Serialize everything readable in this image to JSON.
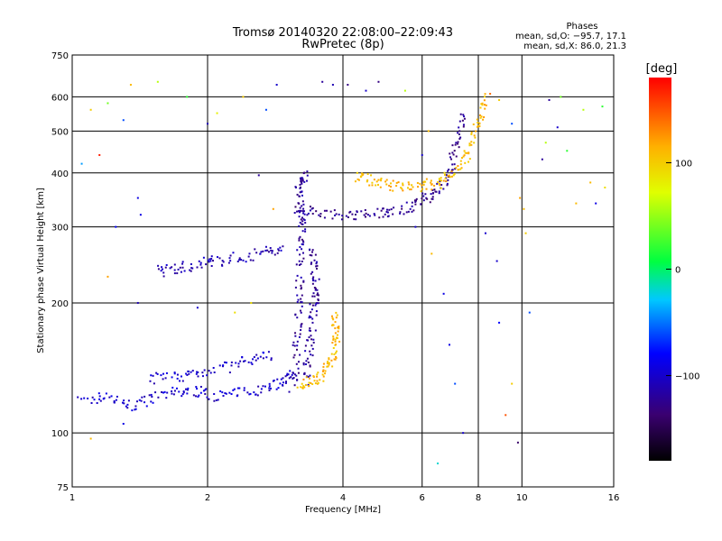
{
  "chart_data": {
    "type": "scatter",
    "title": "Tromsø 20140320 22:08:00–22:09:43",
    "subtitle": "RwPretec (8p)",
    "stats": {
      "header": "Phases",
      "line1": "mean, sd,O: −95.7, 17.1",
      "line2": "mean, sd,X:  86.0, 21.3"
    },
    "xlabel": "Frequency [MHz]",
    "ylabel": "Stationary phase Virtual Height [km]",
    "xscale": "log",
    "yscale": "log",
    "xlim": [
      1,
      16
    ],
    "ylim": [
      75,
      750
    ],
    "xticks": [
      1,
      2,
      4,
      6,
      8,
      10,
      16
    ],
    "xtick_labels": [
      "1",
      "2",
      "4",
      "6",
      "8",
      "10",
      "16"
    ],
    "yticks": [
      75,
      100,
      200,
      300,
      400,
      500,
      600,
      750
    ],
    "ytick_labels": [
      "75",
      "100",
      "200",
      "300",
      "400",
      "500",
      "600",
      "750"
    ],
    "grid": true,
    "colorbar": {
      "label": "[deg]",
      "range": [
        -180,
        180
      ],
      "ticks": [
        100,
        0,
        -100
      ],
      "tick_labels": [
        "100",
        "0",
        "−100"
      ]
    },
    "traces": [
      {
        "phase": -100,
        "points": [
          [
            1.05,
            118
          ],
          [
            1.2,
            122
          ],
          [
            1.35,
            115
          ],
          [
            1.5,
            120
          ],
          [
            1.7,
            124
          ],
          [
            1.9,
            125
          ],
          [
            2.1,
            122
          ],
          [
            2.4,
            124
          ],
          [
            2.7,
            128
          ],
          [
            2.95,
            132
          ],
          [
            3.1,
            138
          ]
        ]
      },
      {
        "phase": -100,
        "points": [
          [
            1.5,
            133
          ],
          [
            1.7,
            135
          ],
          [
            1.9,
            138
          ],
          [
            2.2,
            142
          ],
          [
            2.5,
            148
          ],
          [
            2.8,
            152
          ]
        ]
      },
      {
        "phase": -110,
        "points": [
          [
            1.55,
            236
          ],
          [
            1.7,
            240
          ],
          [
            1.9,
            246
          ],
          [
            2.1,
            250
          ],
          [
            2.4,
            256
          ],
          [
            2.7,
            262
          ],
          [
            2.95,
            268
          ]
        ]
      },
      {
        "phase": -120,
        "points": [
          [
            3.1,
            128
          ],
          [
            3.15,
            150
          ],
          [
            3.18,
            180
          ],
          [
            3.2,
            210
          ],
          [
            3.22,
            250
          ],
          [
            3.25,
            290
          ],
          [
            3.25,
            320
          ],
          [
            3.2,
            350
          ],
          [
            3.2,
            380
          ],
          [
            3.3,
            400
          ]
        ]
      },
      {
        "phase": -120,
        "points": [
          [
            3.3,
            132
          ],
          [
            3.35,
            150
          ],
          [
            3.4,
            170
          ],
          [
            3.45,
            195
          ],
          [
            3.5,
            215
          ],
          [
            3.45,
            240
          ],
          [
            3.4,
            270
          ]
        ]
      },
      {
        "phase": -125,
        "points": [
          [
            3.1,
            335
          ],
          [
            3.5,
            322
          ],
          [
            4.0,
            318
          ],
          [
            4.5,
            320
          ],
          [
            5.0,
            325
          ],
          [
            5.5,
            332
          ],
          [
            6.0,
            345
          ],
          [
            6.4,
            360
          ],
          [
            6.8,
            380
          ],
          [
            7.0,
            420
          ],
          [
            7.2,
            480
          ],
          [
            7.4,
            560
          ]
        ]
      },
      {
        "phase": 110,
        "points": [
          [
            3.2,
            130
          ],
          [
            3.4,
            132
          ],
          [
            3.6,
            136
          ],
          [
            3.75,
            145
          ],
          [
            3.85,
            160
          ],
          [
            3.9,
            175
          ],
          [
            3.8,
            190
          ]
        ]
      },
      {
        "phase": 110,
        "points": [
          [
            4.3,
            395
          ],
          [
            4.6,
            385
          ],
          [
            5.0,
            375
          ],
          [
            5.5,
            370
          ],
          [
            6.0,
            372
          ],
          [
            6.5,
            380
          ],
          [
            7.0,
            395
          ],
          [
            7.5,
            430
          ],
          [
            7.8,
            480
          ],
          [
            8.1,
            540
          ],
          [
            8.3,
            600
          ]
        ]
      }
    ],
    "scatter_points": [
      [
        1.1,
        560,
        100
      ],
      [
        1.2,
        580,
        40
      ],
      [
        1.3,
        530,
        -60
      ],
      [
        1.25,
        300,
        -80
      ],
      [
        1.35,
        640,
        110
      ],
      [
        1.55,
        650,
        60
      ],
      [
        1.4,
        350,
        -90
      ],
      [
        1.42,
        320,
        -90
      ],
      [
        1.05,
        420,
        -40
      ],
      [
        1.15,
        440,
        170
      ],
      [
        1.8,
        600,
        20
      ],
      [
        2.0,
        520,
        -110
      ],
      [
        2.1,
        550,
        80
      ],
      [
        2.4,
        600,
        100
      ],
      [
        2.7,
        560,
        -60
      ],
      [
        2.85,
        640,
        -100
      ],
      [
        2.6,
        395,
        -120
      ],
      [
        2.8,
        330,
        120
      ],
      [
        3.6,
        650,
        -120
      ],
      [
        3.8,
        640,
        -110
      ],
      [
        4.1,
        640,
        -130
      ],
      [
        4.5,
        620,
        -100
      ],
      [
        4.8,
        650,
        -130
      ],
      [
        5.5,
        620,
        60
      ],
      [
        6.2,
        500,
        110
      ],
      [
        6.0,
        440,
        -100
      ],
      [
        5.8,
        300,
        -100
      ],
      [
        6.3,
        260,
        110
      ],
      [
        6.7,
        210,
        -90
      ],
      [
        6.9,
        160,
        -90
      ],
      [
        7.1,
        130,
        -60
      ],
      [
        7.4,
        100,
        -100
      ],
      [
        6.5,
        85,
        -20
      ],
      [
        8.3,
        290,
        -100
      ],
      [
        8.8,
        250,
        -100
      ],
      [
        8.9,
        180,
        -80
      ],
      [
        9.2,
        110,
        150
      ],
      [
        9.8,
        95,
        -140
      ],
      [
        9.5,
        130,
        100
      ],
      [
        10.2,
        290,
        100
      ],
      [
        10.1,
        330,
        110
      ],
      [
        10.4,
        190,
        -60
      ],
      [
        11.1,
        430,
        -120
      ],
      [
        11.3,
        470,
        60
      ],
      [
        11.5,
        590,
        -120
      ],
      [
        12.2,
        600,
        40
      ],
      [
        12.6,
        450,
        20
      ],
      [
        13.2,
        340,
        110
      ],
      [
        13.7,
        560,
        60
      ],
      [
        14.2,
        380,
        110
      ],
      [
        14.6,
        340,
        -90
      ],
      [
        15.1,
        570,
        20
      ],
      [
        15.3,
        370,
        90
      ],
      [
        1.1,
        97,
        110
      ],
      [
        1.3,
        105,
        -90
      ],
      [
        1.2,
        230,
        120
      ],
      [
        1.4,
        200,
        -110
      ],
      [
        1.9,
        195,
        -100
      ],
      [
        2.5,
        200,
        90
      ],
      [
        2.3,
        190,
        90
      ],
      [
        8.5,
        610,
        140
      ],
      [
        8.9,
        590,
        100
      ],
      [
        9.5,
        520,
        -60
      ],
      [
        9.9,
        350,
        120
      ],
      [
        12.0,
        510,
        -100
      ]
    ]
  }
}
